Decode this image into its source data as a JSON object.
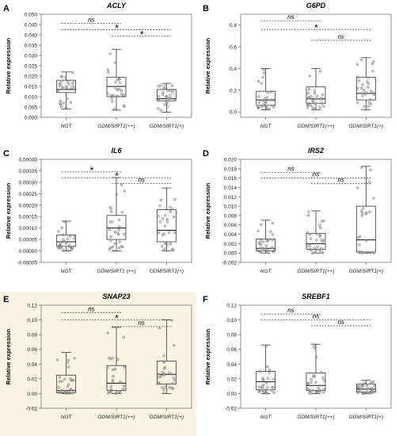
{
  "figure": {
    "highlight_panel": "E",
    "highlight_color": "#fdf3e3"
  },
  "chart_data": [
    {
      "id": "A",
      "type": "boxplot",
      "title": "ACLY",
      "ylabel": "Relative expression",
      "categories": [
        "NGT",
        "GDM/SIRT1(++)",
        "GDM/SIRT1(+)"
      ],
      "ylim": [
        0,
        0.05
      ],
      "yticks": [
        "0.000",
        "0.005",
        "0.010",
        "0.015",
        "0.020",
        "0.025",
        "0.030",
        "0.035",
        "0.040",
        "0.045",
        "0.050"
      ],
      "yticks_values": [
        0,
        0.005,
        0.01,
        0.015,
        0.02,
        0.025,
        0.03,
        0.035,
        0.04,
        0.045,
        0.05
      ],
      "boxes": [
        {
          "whisker_low": 0.004,
          "q1": 0.012,
          "median": 0.0135,
          "q3": 0.018,
          "whisker_high": 0.022
        },
        {
          "whisker_low": 0.0035,
          "q1": 0.01,
          "median": 0.015,
          "q3": 0.0195,
          "whisker_high": 0.033
        },
        {
          "whisker_low": 0.0025,
          "q1": 0.008,
          "median": 0.009,
          "q3": 0.0135,
          "whisker_high": 0.0165
        }
      ],
      "comparisons": [
        {
          "from": 0,
          "to": 1,
          "y": 0.0455,
          "label": "ns"
        },
        {
          "from": 0,
          "to": 2,
          "y": 0.0425,
          "label": "*"
        },
        {
          "from": 1,
          "to": 2,
          "y": 0.0395,
          "label": "*"
        }
      ]
    },
    {
      "id": "B",
      "type": "boxplot",
      "title": "G6PD",
      "ylabel": "Relative expression",
      "categories": [
        "NGT",
        "GDM/SIRT1(++)",
        "GDM/SIRT1(+)"
      ],
      "ylim": [
        -0.05,
        0.9
      ],
      "yticks": [
        "0.0",
        "0.2",
        "0.4",
        "0.6",
        "0.8"
      ],
      "yticks_values": [
        0,
        0.2,
        0.4,
        0.6,
        0.8
      ],
      "boxes": [
        {
          "whisker_low": 0.02,
          "q1": 0.06,
          "median": 0.11,
          "q3": 0.19,
          "whisker_high": 0.4
        },
        {
          "whisker_low": 0.02,
          "q1": 0.08,
          "median": 0.12,
          "q3": 0.23,
          "whisker_high": 0.4
        },
        {
          "whisker_low": 0.02,
          "q1": 0.11,
          "median": 0.17,
          "q3": 0.32,
          "whisker_high": 0.5
        }
      ],
      "comparisons": [
        {
          "from": 0,
          "to": 1,
          "y": 0.84,
          "label": "ns"
        },
        {
          "from": 0,
          "to": 2,
          "y": 0.76,
          "label": "*"
        },
        {
          "from": 1,
          "to": 2,
          "y": 0.66,
          "label": "ns"
        }
      ]
    },
    {
      "id": "C",
      "type": "boxplot",
      "title": "IL6",
      "ylabel": "Relative expression",
      "categories": [
        "NGT",
        "GDM/SIRT1 (++)",
        "GDM/SIRT1(+)"
      ],
      "ylim": [
        -5e-05,
        0.0004
      ],
      "yticks": [
        "-0.00005",
        "0.00000",
        "0.00005",
        "0.00010",
        "0.00015",
        "0.00020",
        "0.00025",
        "0.00030",
        "0.00035",
        "0.00040"
      ],
      "yticks_values": [
        -5e-05,
        0,
        5e-05,
        0.0001,
        0.00015,
        0.0002,
        0.00025,
        0.0003,
        0.00035,
        0.0004
      ],
      "boxes": [
        {
          "whisker_low": 0.0,
          "q1": 2e-05,
          "median": 4e-05,
          "q3": 7e-05,
          "whisker_high": 0.00013
        },
        {
          "whisker_low": 0.0,
          "q1": 5e-05,
          "median": 0.0001,
          "q3": 0.000155,
          "whisker_high": 0.00032
        },
        {
          "whisker_low": 0.0,
          "q1": 4e-05,
          "median": 9e-05,
          "q3": 0.00018,
          "whisker_high": 0.000275
        }
      ],
      "comparisons": [
        {
          "from": 0,
          "to": 1,
          "y": 0.000345,
          "label": "*"
        },
        {
          "from": 0,
          "to": 2,
          "y": 0.00032,
          "label": "*"
        },
        {
          "from": 1,
          "to": 2,
          "y": 0.000295,
          "label": "ns"
        }
      ]
    },
    {
      "id": "D",
      "type": "boxplot",
      "title": "IRS2",
      "ylabel": "Relative expression",
      "categories": [
        "NGT",
        "GDM/SIRT1(++)",
        "GDM/SIRT1(+)"
      ],
      "ylim": [
        -0.002,
        0.02
      ],
      "yticks": [
        "-0.002",
        "0.000",
        "0.002",
        "0.004",
        "0.006",
        "0.008",
        "0.010",
        "0.012",
        "0.014",
        "0.016",
        "0.018",
        "0.020"
      ],
      "yticks_values": [
        -0.002,
        0,
        0.002,
        0.004,
        0.006,
        0.008,
        0.01,
        0.012,
        0.014,
        0.016,
        0.018,
        0.02
      ],
      "boxes": [
        {
          "whisker_low": 0.0,
          "q1": 0.0005,
          "median": 0.001,
          "q3": 0.003,
          "whisker_high": 0.007
        },
        {
          "whisker_low": 0.0,
          "q1": 0.0008,
          "median": 0.002,
          "q3": 0.0042,
          "whisker_high": 0.009
        },
        {
          "whisker_low": 0.0,
          "q1": 0.0002,
          "median": 0.0028,
          "q3": 0.01,
          "whisker_high": 0.0185
        }
      ],
      "comparisons": [
        {
          "from": 0,
          "to": 1,
          "y": 0.0172,
          "label": "ns"
        },
        {
          "from": 0,
          "to": 2,
          "y": 0.016,
          "label": "ns"
        },
        {
          "from": 1,
          "to": 2,
          "y": 0.0148,
          "label": "ns"
        }
      ]
    },
    {
      "id": "E",
      "type": "boxplot",
      "title": "SNAP23",
      "ylabel": "Relative expression",
      "categories": [
        "NGT",
        "GDM/SIRT1(++)",
        "GDM/SIRT1(+)"
      ],
      "ylim": [
        -0.02,
        0.12
      ],
      "yticks": [
        "-0.02",
        "0.00",
        "0.02",
        "0.04",
        "0.06",
        "0.08",
        "0.10",
        "0.12"
      ],
      "yticks_values": [
        -0.02,
        0,
        0.02,
        0.04,
        0.06,
        0.08,
        0.1,
        0.12
      ],
      "boxes": [
        {
          "whisker_low": 0.0,
          "q1": 0.001,
          "median": 0.004,
          "q3": 0.025,
          "whisker_high": 0.056
        },
        {
          "whisker_low": 0.0,
          "q1": 0.004,
          "median": 0.014,
          "q3": 0.038,
          "whisker_high": 0.09
        },
        {
          "whisker_low": 0.0,
          "q1": 0.013,
          "median": 0.026,
          "q3": 0.044,
          "whisker_high": 0.1
        }
      ],
      "comparisons": [
        {
          "from": 0,
          "to": 1,
          "y": 0.11,
          "label": "ns"
        },
        {
          "from": 0,
          "to": 2,
          "y": 0.1,
          "label": "*"
        },
        {
          "from": 1,
          "to": 2,
          "y": 0.091,
          "label": "ns"
        }
      ]
    },
    {
      "id": "F",
      "type": "boxplot",
      "title": "SREBF1",
      "ylabel": "Relative expression",
      "categories": [
        "NGT",
        "GDM/SIRT1(++)",
        "GDM/SIRT1(+)"
      ],
      "ylim": [
        -0.02,
        0.12
      ],
      "yticks": [
        "-0.02",
        "0.00",
        "0.02",
        "0.04",
        "0.06",
        "0.08",
        "0.10",
        "0.12"
      ],
      "yticks_values": [
        -0.02,
        0,
        0.02,
        0.04,
        0.06,
        0.08,
        0.1,
        0.12
      ],
      "boxes": [
        {
          "whisker_low": 0.0,
          "q1": 0.005,
          "median": 0.016,
          "q3": 0.03,
          "whisker_high": 0.066
        },
        {
          "whisker_low": 0.0,
          "q1": 0.004,
          "median": 0.011,
          "q3": 0.028,
          "whisker_high": 0.067
        },
        {
          "whisker_low": 0.0,
          "q1": 0.002,
          "median": 0.006,
          "q3": 0.013,
          "whisker_high": 0.018
        }
      ],
      "comparisons": [
        {
          "from": 0,
          "to": 1,
          "y": 0.108,
          "label": "ns"
        },
        {
          "from": 0,
          "to": 2,
          "y": 0.1,
          "label": "ns"
        },
        {
          "from": 1,
          "to": 2,
          "y": 0.092,
          "label": "ns"
        }
      ]
    }
  ]
}
